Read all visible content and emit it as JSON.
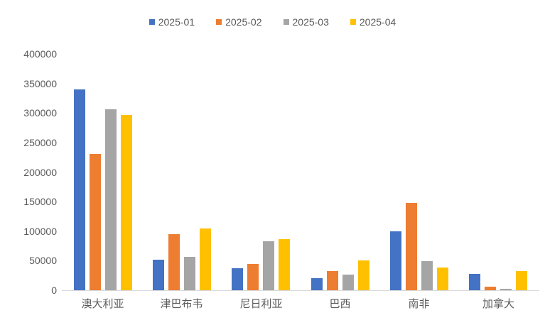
{
  "chart_data": {
    "type": "bar",
    "title": "",
    "categories": [
      "澳大利亚",
      "津巴布韦",
      "尼日利亚",
      "巴西",
      "南非",
      "加拿大"
    ],
    "series": [
      {
        "name": "2025-01",
        "color": "#4472C4",
        "values": [
          340000,
          52000,
          37000,
          21000,
          100000,
          28000
        ]
      },
      {
        "name": "2025-02",
        "color": "#ED7D31",
        "values": [
          231000,
          95000,
          44000,
          32000,
          148000,
          6000
        ]
      },
      {
        "name": "2025-03",
        "color": "#A5A5A5",
        "values": [
          306000,
          56000,
          83000,
          26000,
          49000,
          2000
        ]
      },
      {
        "name": "2025-04",
        "color": "#FFC000",
        "values": [
          297000,
          104000,
          87000,
          50000,
          38000,
          32000
        ]
      }
    ],
    "y_ticks": [
      0,
      50000,
      100000,
      150000,
      200000,
      250000,
      300000,
      350000,
      400000
    ],
    "ylim": [
      0,
      400000
    ],
    "xlabel": "",
    "ylabel": "",
    "legend_position": "top",
    "grid": false,
    "text_color": "#595959",
    "axis_line_color": "#D9D9D9",
    "background_color": "#FFFFFF"
  }
}
